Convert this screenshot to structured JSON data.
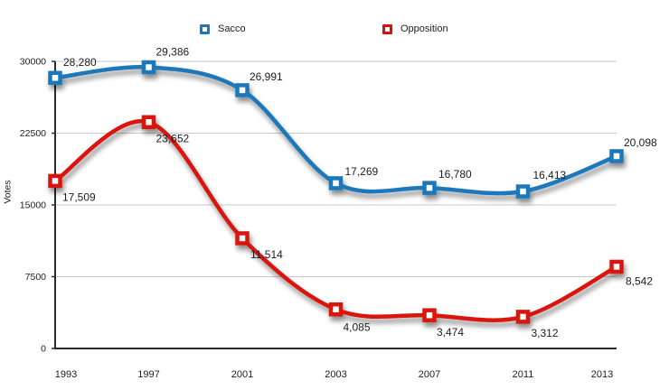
{
  "chart_data": {
    "type": "line",
    "title": "",
    "xlabel": "",
    "ylabel": "Votes",
    "categories": [
      "1993",
      "1997",
      "2001",
      "2003",
      "2007",
      "2011",
      "2013"
    ],
    "series": [
      {
        "name": "Sacco",
        "color": "#1a78bb",
        "values": [
          28280,
          29386,
          26991,
          17269,
          16780,
          16413,
          20098
        ],
        "labels": [
          "28,280",
          "29,386",
          "26,991",
          "17,269",
          "16,780",
          "16,413",
          "20,098"
        ]
      },
      {
        "name": "Opposition",
        "color": "#d81210",
        "values": [
          17509,
          23652,
          11514,
          4085,
          3474,
          3312,
          8542
        ],
        "labels": [
          "17,509",
          "23,652",
          "11,514",
          "4,085",
          "3,474",
          "3,312",
          "8,542"
        ]
      }
    ],
    "ylim": [
      0,
      30000
    ],
    "yticks": [
      0,
      7500,
      15000,
      22500,
      30000
    ],
    "ytick_labels": [
      "0",
      "7500",
      "15000",
      "22500",
      "30000"
    ],
    "grid": true,
    "legend_position": "top",
    "colors": {
      "gridline": "#c9c9c9",
      "axis": "#2b2b2b",
      "text": "#1c1c1c"
    }
  }
}
